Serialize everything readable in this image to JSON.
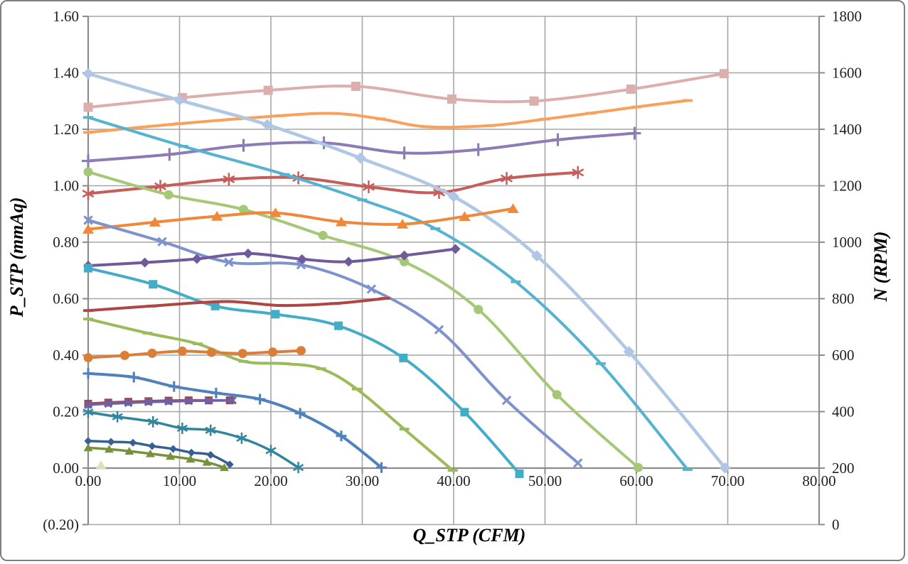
{
  "styles": {
    "background": "#FFFFFF",
    "frame_border": "#7F7F7F",
    "grid_color": "#A6A6A6",
    "axis_line_color": "#8C8C8C",
    "tick_label_color": "#1F1F1F",
    "negative_tick_color": "#FF0000"
  },
  "chart_data": {
    "type": "line",
    "title": "",
    "xlabel": "Q_STP (CFM)",
    "ylabel": "P_STP (mmAq)",
    "ylabel_right": "N (RPM)",
    "grid": true,
    "legend_position": "none",
    "x_axis": {
      "title": "Q_STP (CFM)",
      "min": 0,
      "max": 80,
      "ticks": [
        {
          "v": 0,
          "label": "0.00"
        },
        {
          "v": 10,
          "label": "10.00"
        },
        {
          "v": 20,
          "label": "20.00"
        },
        {
          "v": 30,
          "label": "30.00"
        },
        {
          "v": 40,
          "label": "40.00"
        },
        {
          "v": 50,
          "label": "50.00"
        },
        {
          "v": 60,
          "label": "60.00"
        },
        {
          "v": 70,
          "label": "70.00"
        },
        {
          "v": 80,
          "label": "80.00"
        }
      ]
    },
    "y_left": {
      "title": "P_STP (mmAq)",
      "min": -0.2,
      "max": 1.6,
      "ticks": [
        {
          "v": -0.2,
          "label": "(0.20)",
          "color": "#FF0000"
        },
        {
          "v": 0.0,
          "label": "0.00"
        },
        {
          "v": 0.2,
          "label": "0.20"
        },
        {
          "v": 0.4,
          "label": "0.40"
        },
        {
          "v": 0.6,
          "label": "0.60"
        },
        {
          "v": 0.8,
          "label": "0.80"
        },
        {
          "v": 1.0,
          "label": "1.00"
        },
        {
          "v": 1.2,
          "label": "1.20"
        },
        {
          "v": 1.4,
          "label": "1.40"
        },
        {
          "v": 1.6,
          "label": "1.60"
        }
      ]
    },
    "y_right": {
      "title": "N (RPM)",
      "min": 0,
      "max": 1800,
      "ticks": [
        {
          "v": 0,
          "label": "0"
        },
        {
          "v": 200,
          "label": "200"
        },
        {
          "v": 400,
          "label": "400"
        },
        {
          "v": 600,
          "label": "600"
        },
        {
          "v": 800,
          "label": "800"
        },
        {
          "v": 1000,
          "label": "1000"
        },
        {
          "v": 1200,
          "label": "1200"
        },
        {
          "v": 1400,
          "label": "1400"
        },
        {
          "v": 1600,
          "label": "1600"
        },
        {
          "v": 1800,
          "label": "1800"
        }
      ]
    },
    "series": [
      {
        "id": "nq10",
        "desc": "N-Q curve, pink squares, right axis",
        "axis": "right",
        "color": "#DCAEAC",
        "marker": "square",
        "marker_size": 6.5,
        "line_width": 4,
        "points": [
          [
            0,
            1478
          ],
          [
            10.3,
            1512
          ],
          [
            19.7,
            1538
          ],
          [
            29.3,
            1552
          ],
          [
            39.8,
            1507
          ],
          [
            48.8,
            1500
          ],
          [
            59.4,
            1542
          ],
          [
            69.6,
            1597
          ]
        ]
      },
      {
        "id": "nq9",
        "desc": "N-Q curve, light orange dashes, right axis",
        "axis": "right",
        "color": "#F9A15B",
        "marker": "dash",
        "marker_size": 7,
        "line_width": 4,
        "points": [
          [
            0,
            1389
          ],
          [
            10,
            1420
          ],
          [
            21,
            1448
          ],
          [
            27,
            1456
          ],
          [
            32,
            1437
          ],
          [
            37,
            1409
          ],
          [
            44,
            1413
          ],
          [
            50,
            1436
          ],
          [
            55,
            1457
          ],
          [
            60,
            1479
          ],
          [
            65.6,
            1502
          ]
        ]
      },
      {
        "id": "nq8",
        "desc": "N-Q curve, light purple plus marks, right axis",
        "axis": "right",
        "color": "#8C7BB4",
        "marker": "plus",
        "marker_size": 9,
        "line_width": 4,
        "points": [
          [
            0,
            1288
          ],
          [
            8.9,
            1311
          ],
          [
            17,
            1343
          ],
          [
            25.8,
            1352
          ],
          [
            34.6,
            1316
          ],
          [
            42.7,
            1328
          ],
          [
            51.4,
            1363
          ],
          [
            59.8,
            1386
          ]
        ]
      },
      {
        "id": "nq7",
        "desc": "N-Q curve, rose asterisks, right axis",
        "axis": "right",
        "color": "#C55D5B",
        "marker": "asterisk",
        "marker_size": 9,
        "line_width": 4,
        "points": [
          [
            0,
            1172
          ],
          [
            7.9,
            1198
          ],
          [
            15.4,
            1223
          ],
          [
            23,
            1228
          ],
          [
            30.7,
            1196
          ],
          [
            38.4,
            1176
          ],
          [
            45.8,
            1226
          ],
          [
            53.6,
            1247
          ]
        ]
      },
      {
        "id": "pq9",
        "desc": "P-Q curve, teal dashes, left axis",
        "axis": "left",
        "color": "#55B3CF",
        "marker": "dash",
        "marker_size": 7,
        "line_width": 4,
        "points": [
          [
            0,
            1.242
          ],
          [
            10.4,
            1.14
          ],
          [
            21.5,
            1.04
          ],
          [
            30,
            0.95
          ],
          [
            38,
            0.848
          ],
          [
            46.8,
            0.66
          ],
          [
            56.1,
            0.37
          ],
          [
            65.6,
            -0.005
          ]
        ]
      },
      {
        "id": "pq10",
        "desc": "P-Q curve, periwinkle diamonds, left axis",
        "axis": "left",
        "color": "#AFC6E4",
        "marker": "diamond",
        "marker_size": 8,
        "line_width": 4.5,
        "points": [
          [
            0,
            1.397
          ],
          [
            10,
            1.303
          ],
          [
            19.6,
            1.216
          ],
          [
            29.8,
            1.098
          ],
          [
            40,
            0.962
          ],
          [
            49.1,
            0.752
          ],
          [
            59.2,
            0.412
          ],
          [
            69.7,
            0.001
          ]
        ]
      },
      {
        "id": "pq8",
        "desc": "P-Q curve, light green circles, left axis",
        "axis": "left",
        "color": "#A5C876",
        "marker": "circle",
        "marker_size": 6.5,
        "line_width": 4,
        "points": [
          [
            0,
            1.049
          ],
          [
            8.8,
            0.968
          ],
          [
            17,
            0.916
          ],
          [
            25.7,
            0.824
          ],
          [
            34.6,
            0.731
          ],
          [
            42.7,
            0.562
          ],
          [
            51.3,
            0.26
          ],
          [
            60.2,
            0.002
          ]
        ]
      },
      {
        "id": "nq6",
        "desc": "N-Q curve, orange triangles, right axis",
        "axis": "right",
        "color": "#F0883C",
        "marker": "triangle",
        "marker_size": 7.5,
        "line_width": 4,
        "points": [
          [
            0,
            1046
          ],
          [
            7.3,
            1071
          ],
          [
            14.1,
            1092
          ],
          [
            20.5,
            1104
          ],
          [
            27.7,
            1072
          ],
          [
            34.4,
            1064
          ],
          [
            41.2,
            1091
          ],
          [
            46.5,
            1119
          ]
        ]
      },
      {
        "id": "pq7",
        "desc": "P-Q curve, blue-periwinkle x marks, left axis",
        "axis": "left",
        "color": "#7E92CC",
        "marker": "x",
        "marker_size": 7,
        "line_width": 4,
        "points": [
          [
            0,
            0.878
          ],
          [
            8.1,
            0.802
          ],
          [
            15.4,
            0.729
          ],
          [
            23.3,
            0.72
          ],
          [
            31,
            0.634
          ],
          [
            38.4,
            0.49
          ],
          [
            45.8,
            0.24
          ],
          [
            53.6,
            0.018
          ]
        ]
      },
      {
        "id": "nq5",
        "desc": "N-Q curve, purple diamonds, right axis",
        "axis": "right",
        "color": "#6F5A9B",
        "marker": "diamond",
        "marker_size": 7,
        "line_width": 4,
        "points": [
          [
            0,
            917
          ],
          [
            6.2,
            928
          ],
          [
            11.9,
            941
          ],
          [
            17.5,
            960
          ],
          [
            23.4,
            940
          ],
          [
            28.5,
            931
          ],
          [
            34.6,
            953
          ],
          [
            40.2,
            976
          ]
        ]
      },
      {
        "id": "pq6",
        "desc": "P-Q curve, teal squares, left axis",
        "axis": "left",
        "color": "#45ACC8",
        "marker": "square",
        "marker_size": 6,
        "line_width": 4,
        "points": [
          [
            0,
            0.708
          ],
          [
            7.1,
            0.651
          ],
          [
            13.9,
            0.574
          ],
          [
            20.5,
            0.545
          ],
          [
            27.4,
            0.504
          ],
          [
            34.5,
            0.39
          ],
          [
            41.2,
            0.198
          ],
          [
            47.2,
            -0.02
          ]
        ]
      },
      {
        "id": "nq4",
        "desc": "N-Q curve, dark red dashes, right axis",
        "axis": "right",
        "color": "#B04643",
        "marker": "dash",
        "marker_size": 7,
        "line_width": 4,
        "points": [
          [
            0,
            758
          ],
          [
            7,
            774
          ],
          [
            15,
            790
          ],
          [
            21,
            776
          ],
          [
            27,
            783
          ],
          [
            32.5,
            801
          ]
        ]
      },
      {
        "id": "pq5",
        "desc": "P-Q curve, olive green dashes, left axis",
        "axis": "left",
        "color": "#9BBB59",
        "marker": "dash",
        "marker_size": 7,
        "line_width": 4,
        "points": [
          [
            0,
            0.528
          ],
          [
            6.5,
            0.478
          ],
          [
            12,
            0.44
          ],
          [
            17,
            0.378
          ],
          [
            21.5,
            0.37
          ],
          [
            25.5,
            0.352
          ],
          [
            29.4,
            0.28
          ],
          [
            34.6,
            0.138
          ],
          [
            39.9,
            -0.008
          ]
        ]
      },
      {
        "id": "nq3",
        "desc": "N-Q curve, dark orange circles, right axis",
        "axis": "right",
        "color": "#DB7E38",
        "marker": "circle",
        "marker_size": 6.5,
        "line_width": 4,
        "points": [
          [
            0,
            591
          ],
          [
            4,
            599
          ],
          [
            7,
            607
          ],
          [
            10.3,
            614
          ],
          [
            13.5,
            610
          ],
          [
            16.9,
            606
          ],
          [
            20.2,
            611
          ],
          [
            23.3,
            616
          ]
        ]
      },
      {
        "id": "pq4",
        "desc": "P-Q curve, blue plus marks, left axis",
        "axis": "left",
        "color": "#4F81BD",
        "marker": "plus",
        "marker_size": 7.5,
        "line_width": 4,
        "points": [
          [
            0,
            0.335
          ],
          [
            5,
            0.322
          ],
          [
            9.4,
            0.289
          ],
          [
            14,
            0.266
          ],
          [
            18.8,
            0.244
          ],
          [
            23.2,
            0.194
          ],
          [
            27.7,
            0.114
          ],
          [
            32.1,
            0.002
          ]
        ]
      },
      {
        "id": "pq3",
        "desc": "P-Q curve, dark teal asterisks, left axis",
        "axis": "left",
        "color": "#31859C",
        "marker": "asterisk",
        "marker_size": 8,
        "line_width": 3.5,
        "points": [
          [
            0,
            0.198
          ],
          [
            3.2,
            0.182
          ],
          [
            7.1,
            0.164
          ],
          [
            10.3,
            0.141
          ],
          [
            13.4,
            0.134
          ],
          [
            16.8,
            0.106
          ],
          [
            20,
            0.062
          ],
          [
            23,
            0.002
          ]
        ]
      },
      {
        "id": "nq2",
        "desc": "N-Q curve, maroon squares, right axis",
        "axis": "right",
        "color": "#9C4843",
        "marker": "square",
        "marker_size": 5.5,
        "line_width": 3.5,
        "points": [
          [
            0,
            428
          ],
          [
            2.2,
            432
          ],
          [
            4.4,
            435
          ],
          [
            6.6,
            437
          ],
          [
            8.8,
            439
          ],
          [
            11,
            440
          ],
          [
            13.2,
            440
          ],
          [
            15.5,
            440
          ]
        ]
      },
      {
        "id": "nq1",
        "desc": "N-Q curve, violet x marks, right axis",
        "axis": "right",
        "color": "#6F61A8",
        "marker": "x",
        "marker_size": 6,
        "line_width": 3.5,
        "points": [
          [
            0,
            424
          ],
          [
            2.2,
            428
          ],
          [
            4.4,
            431
          ],
          [
            6.6,
            434
          ],
          [
            8.8,
            436
          ],
          [
            11,
            438
          ],
          [
            13.2,
            439
          ],
          [
            15.8,
            440
          ]
        ]
      },
      {
        "id": "pq2",
        "desc": "P-Q curve, dark olive triangles, left axis",
        "axis": "left",
        "color": "#76923C",
        "marker": "triangle",
        "marker_size": 6,
        "line_width": 3.5,
        "points": [
          [
            0,
            0.072
          ],
          [
            2.3,
            0.067
          ],
          [
            4.5,
            0.06
          ],
          [
            6.8,
            0.051
          ],
          [
            9,
            0.042
          ],
          [
            11.2,
            0.032
          ],
          [
            13,
            0.021
          ],
          [
            14.9,
            0.002
          ]
        ]
      },
      {
        "id": "pq1",
        "desc": "P-Q curve, navy diamonds, left axis",
        "axis": "left",
        "color": "#366092",
        "marker": "diamond",
        "marker_size": 5.5,
        "line_width": 3.5,
        "points": [
          [
            0,
            0.096
          ],
          [
            2.5,
            0.093
          ],
          [
            4.9,
            0.09
          ],
          [
            7,
            0.078
          ],
          [
            9.3,
            0.068
          ],
          [
            11.3,
            0.055
          ],
          [
            13.4,
            0.047
          ],
          [
            15.5,
            0.013
          ]
        ]
      },
      {
        "id": "stray",
        "desc": "single pale green triangle point on x-axis",
        "axis": "left",
        "color": "#D6E3BC",
        "marker": "triangle",
        "marker_size": 7,
        "line_width": 0,
        "points": [
          [
            1.4,
            0.01
          ]
        ]
      }
    ]
  }
}
